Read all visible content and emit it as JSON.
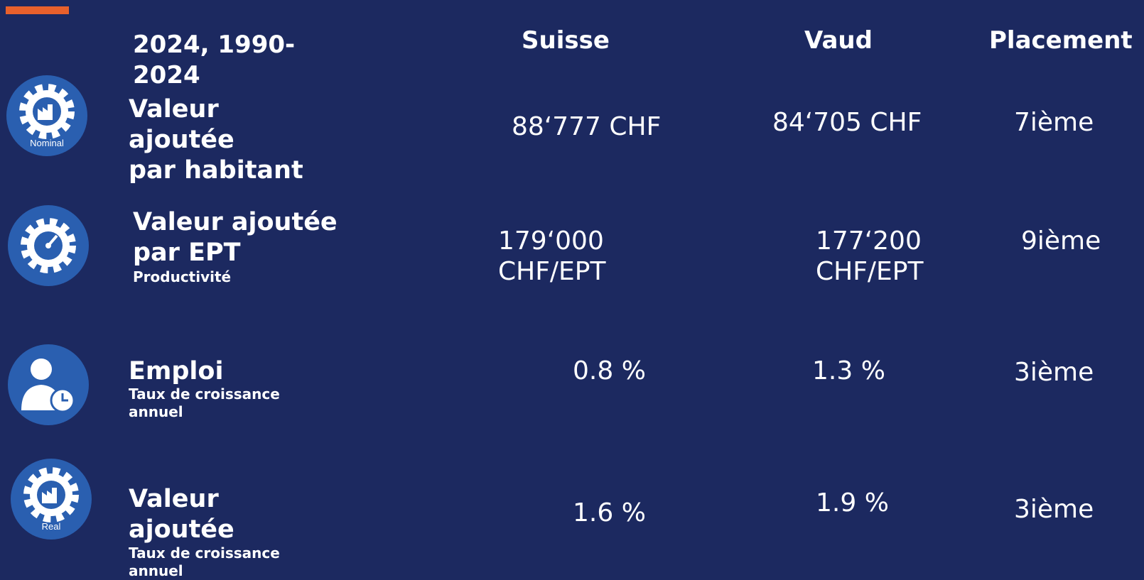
{
  "header": {
    "label": "2024, 1990-2024",
    "columns": [
      "Suisse",
      "Vaud",
      "Placement"
    ]
  },
  "rows": [
    {
      "icon_label": "Nominal",
      "title_lines": [
        "Valeur",
        "ajoutée",
        "par habitant"
      ],
      "suisse": "88‘777 CHF",
      "vaud": "84‘705 CHF",
      "placement": "7ième"
    },
    {
      "title_lines": [
        "Valeur ajoutée",
        "par EPT"
      ],
      "subtitle": "Productivité",
      "suisse": "179‘000 CHF/EPT",
      "vaud": "177‘200 CHF/EPT",
      "placement": "9ième"
    },
    {
      "title_lines": [
        "Emploi"
      ],
      "subtitle": "Taux de croissance annuel",
      "suisse": "0.8 %",
      "vaud": "1.3 %",
      "placement": "3ième"
    },
    {
      "icon_label": "Real",
      "title_lines": [
        "Valeur",
        "ajoutée"
      ],
      "subtitle": "Taux de croissance annuel",
      "suisse": "1.6 %",
      "vaud": "1.9 %",
      "placement": "3ième"
    }
  ]
}
